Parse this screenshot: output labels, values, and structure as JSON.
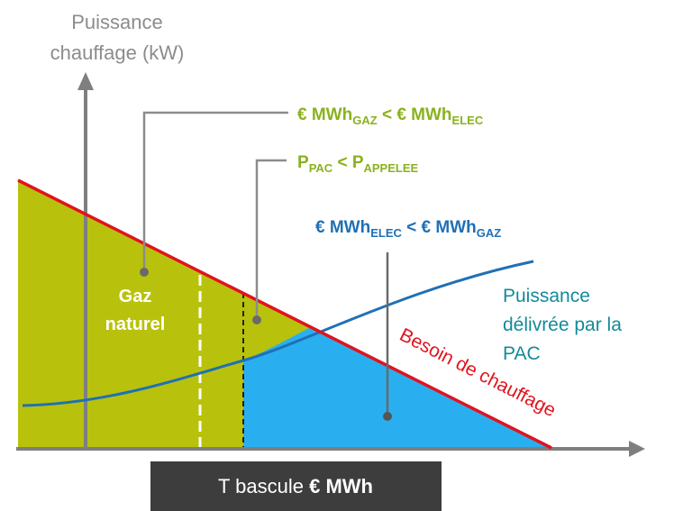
{
  "y_axis_label": [
    "Puissance",
    "chauffage (kW)"
  ],
  "annotation_gaz_cheaper": [
    [
      "€ MWh",
      "GAZ"
    ],
    [
      " < € MWh",
      "ELEC"
    ]
  ],
  "annotation_power": [
    [
      "P",
      "PAC"
    ],
    [
      " < P",
      "APPELEE"
    ]
  ],
  "annotation_elec_cheaper": [
    [
      "€ MWh",
      "ELEC"
    ],
    [
      " < € MWh",
      "GAZ"
    ]
  ],
  "zone_gaz": [
    "Gaz",
    "naturel"
  ],
  "curve_pac_label": [
    "Puissance",
    "délivrée par la",
    "PAC"
  ],
  "curve_need_label": "Besoin de chauffage",
  "footer": {
    "text": "T bascule ",
    "bold": "€ MWh"
  }
}
